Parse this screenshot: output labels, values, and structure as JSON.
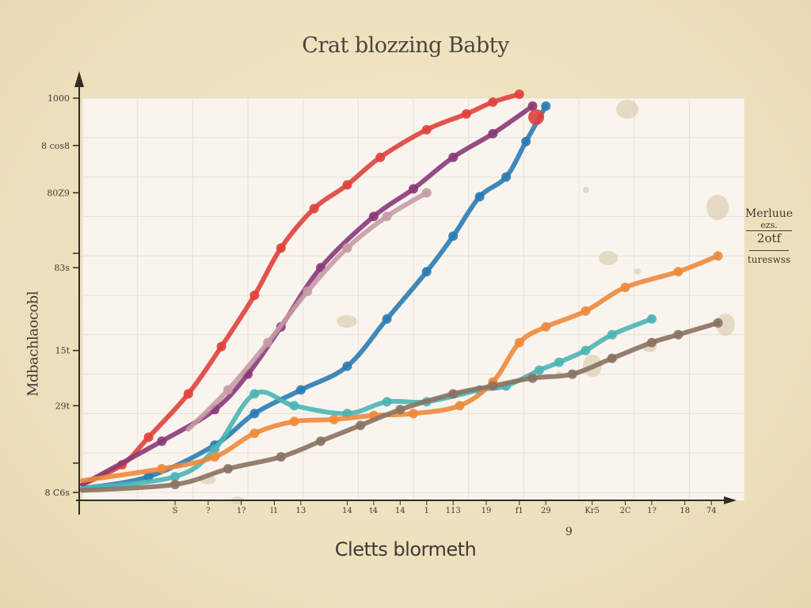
{
  "chart_data": {
    "type": "line",
    "title": "Crat blozzing Babty",
    "xlabel": "Cletts blormeth",
    "ylabel": "Mdbachlaocobl",
    "ylim": [
      0,
      1000
    ],
    "xlim": [
      0,
      100
    ],
    "grid": true,
    "y_ticks": [
      {
        "value": 1000,
        "label": "1000"
      },
      {
        "value": 880,
        "label": "8 cos8"
      },
      {
        "value": 760,
        "label": "80Z9"
      },
      {
        "value": 570,
        "label": "83s"
      },
      {
        "value": 360,
        "label": "15t"
      },
      {
        "value": 220,
        "label": "29t"
      },
      {
        "value": 0,
        "label": "8 C6s"
      }
    ],
    "x_ticks": [
      {
        "value": 14,
        "label": "S"
      },
      {
        "value": 19,
        "label": "?"
      },
      {
        "value": 24,
        "label": "1?"
      },
      {
        "value": 29,
        "label": "l1"
      },
      {
        "value": 33,
        "label": "13"
      },
      {
        "value": 40,
        "label": "14"
      },
      {
        "value": 44,
        "label": "t4"
      },
      {
        "value": 48,
        "label": "14"
      },
      {
        "value": 52,
        "label": "1"
      },
      {
        "value": 56,
        "label": "113"
      },
      {
        "value": 61,
        "label": "19"
      },
      {
        "value": 66,
        "label": "f1"
      },
      {
        "value": 70,
        "label": "29"
      },
      {
        "value": 77,
        "label": "Kr5"
      },
      {
        "value": 82,
        "label": "2C"
      },
      {
        "value": 86,
        "label": "1?"
      },
      {
        "value": 91,
        "label": "18"
      },
      {
        "value": 95,
        "label": "74"
      }
    ],
    "x_markers": [
      {
        "value": 73,
        "label": "9"
      }
    ],
    "legend": {
      "position": "right",
      "lines": [
        "Merluue",
        "ezs.",
        "2otf",
        "tureswss"
      ]
    },
    "series": [
      {
        "color": "#e0413c",
        "x": [
          0,
          6,
          10,
          16,
          21,
          26,
          30,
          35,
          40,
          45,
          52,
          58,
          62,
          66
        ],
        "y": [
          20,
          70,
          140,
          250,
          370,
          500,
          620,
          720,
          780,
          850,
          920,
          960,
          990,
          1010
        ]
      },
      {
        "color": "#8a3a78",
        "x": [
          0,
          12,
          20,
          25,
          30,
          36,
          44,
          50,
          56,
          62,
          68
        ],
        "y": [
          20,
          130,
          210,
          300,
          420,
          570,
          700,
          770,
          850,
          910,
          980
        ]
      },
      {
        "color": "#c79aa6",
        "x": [
          16,
          22,
          28,
          34,
          40,
          46,
          52
        ],
        "y": [
          160,
          260,
          380,
          510,
          620,
          700,
          760
        ]
      },
      {
        "color": "#2b7cb3",
        "x": [
          0,
          10,
          20,
          26,
          33,
          40,
          46,
          52,
          56,
          60,
          64,
          67,
          70
        ],
        "y": [
          10,
          40,
          120,
          200,
          260,
          320,
          440,
          560,
          650,
          750,
          800,
          890,
          980
        ]
      },
      {
        "color": "#4bb5b5",
        "x": [
          0,
          14,
          20,
          26,
          32,
          40,
          46,
          52,
          60,
          64,
          69,
          72,
          76,
          80,
          86
        ],
        "y": [
          10,
          40,
          110,
          250,
          220,
          200,
          230,
          230,
          260,
          270,
          310,
          330,
          360,
          400,
          440
        ]
      },
      {
        "color": "#ed8a3c",
        "x": [
          0,
          12,
          20,
          26,
          32,
          38,
          44,
          50,
          57,
          62,
          66,
          70,
          76,
          82,
          90,
          96
        ],
        "y": [
          30,
          60,
          90,
          150,
          180,
          185,
          195,
          200,
          220,
          280,
          380,
          420,
          460,
          520,
          560,
          600
        ]
      },
      {
        "color": "#8b7260",
        "x": [
          0,
          14,
          22,
          30,
          36,
          42,
          48,
          56,
          62,
          68,
          74,
          80,
          86,
          90,
          96
        ],
        "y": [
          5,
          20,
          60,
          90,
          130,
          170,
          210,
          250,
          270,
          290,
          300,
          340,
          380,
          400,
          430
        ]
      }
    ]
  }
}
